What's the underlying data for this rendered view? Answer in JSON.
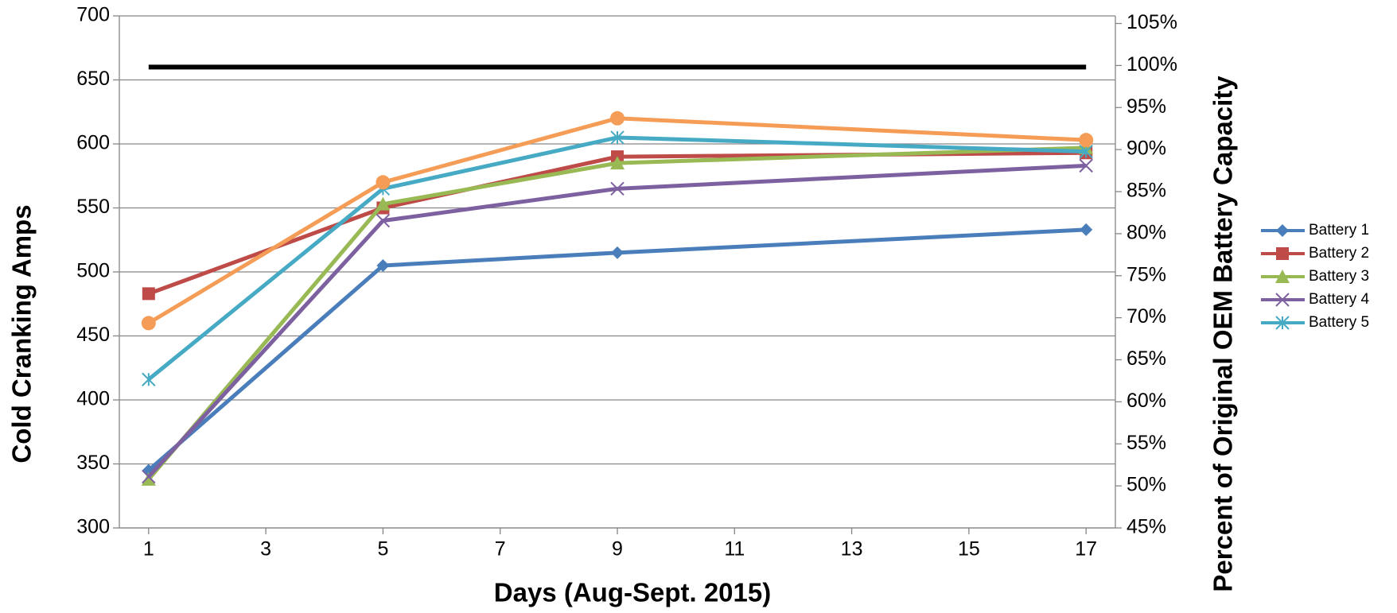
{
  "chart_data": {
    "type": "line",
    "x_label": "Days (Aug-Sept. 2015)",
    "y_label": "Cold Cranking Amps",
    "y2_label": "Percent of Original OEM Battery Capacity",
    "x": [
      1,
      5,
      9,
      17
    ],
    "xlim": [
      0.5,
      17.5
    ],
    "xticks": [
      1,
      3,
      5,
      7,
      9,
      11,
      13,
      15,
      17
    ],
    "ylim": [
      300,
      700
    ],
    "yticks": [
      300,
      350,
      400,
      450,
      500,
      550,
      600,
      650,
      700
    ],
    "y2lim": [
      45,
      105.9
    ],
    "y2ticks": [
      {
        "value": 45,
        "label": "45%"
      },
      {
        "value": 50,
        "label": "50%"
      },
      {
        "value": 55,
        "label": "55%"
      },
      {
        "value": 60,
        "label": "60%"
      },
      {
        "value": 65,
        "label": "65%"
      },
      {
        "value": 70,
        "label": "70%"
      },
      {
        "value": 75,
        "label": "75%"
      },
      {
        "value": 80,
        "label": "80%"
      },
      {
        "value": 85,
        "label": "85%"
      },
      {
        "value": 90,
        "label": "90%"
      },
      {
        "value": 95,
        "label": "95%"
      },
      {
        "value": 100,
        "label": "100%"
      },
      {
        "value": 105,
        "label": "105%"
      }
    ],
    "grid": true,
    "legend": "right",
    "series": [
      {
        "color": "#000000",
        "values": [
          660,
          660,
          660,
          660
        ],
        "marker": "none"
      },
      {
        "name": "Battery 1",
        "color": "#4a7ebb",
        "values": [
          345,
          505,
          515,
          533
        ],
        "marker": "diamond"
      },
      {
        "name": "Battery 2",
        "color": "#be4b48",
        "values": [
          483,
          550,
          590,
          593
        ],
        "marker": "square"
      },
      {
        "name": "Battery 3",
        "color": "#98b954",
        "values": [
          338,
          553,
          585,
          597
        ],
        "marker": "triangle"
      },
      {
        "name": "Battery 4",
        "color": "#7d60a0",
        "values": [
          340,
          540,
          565,
          583
        ],
        "marker": "x"
      },
      {
        "name": "Battery 5",
        "color": "#46aac5",
        "values": [
          416,
          565,
          605,
          594
        ],
        "marker": "star"
      },
      {
        "color": "#f59d56",
        "values": [
          460,
          570,
          620,
          603
        ],
        "marker": "circle"
      }
    ]
  }
}
